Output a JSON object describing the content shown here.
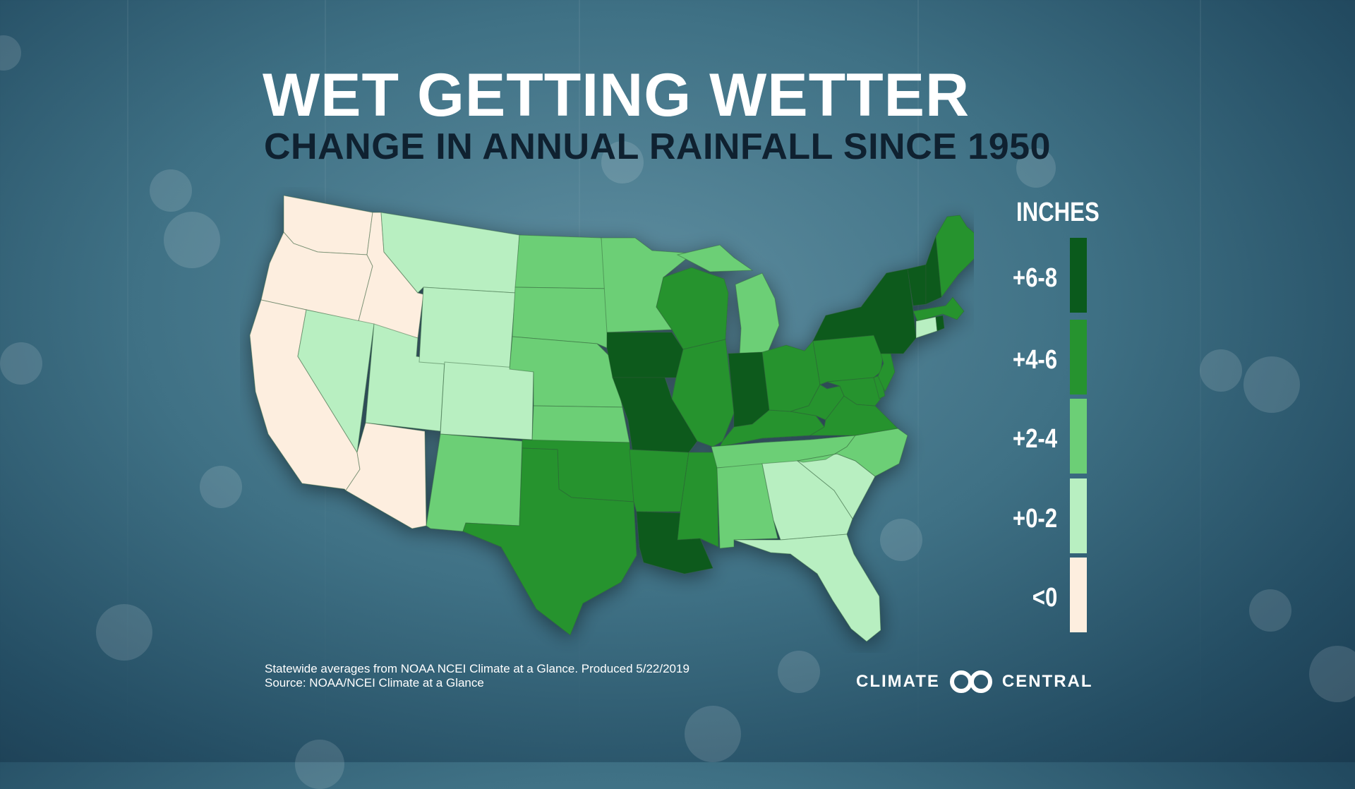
{
  "title": "WET GETTING WETTER",
  "subtitle": "CHANGE IN ANNUAL RAINFALL SINCE 1950",
  "legend": {
    "title": "INCHES",
    "items": [
      {
        "label": "+6-8",
        "color": "#0a5a1c"
      },
      {
        "label": "+4-6",
        "color": "#26932f"
      },
      {
        "label": "+2-4",
        "color": "#6ccf76"
      },
      {
        "label": "+0-2",
        "color": "#b8efc1"
      },
      {
        "label": "<0",
        "color": "#fdeedf"
      }
    ]
  },
  "map": {
    "type": "choropleth",
    "region": "Contiguous United States",
    "states": {
      "WA": "<0",
      "OR": "<0",
      "CA": "<0",
      "ID": "<0",
      "AZ": "<0",
      "NV": "+0-2",
      "UT": "+0-2",
      "MT": "+0-2",
      "WY": "+0-2",
      "CO": "+0-2",
      "GA": "+0-2",
      "SC": "+0-2",
      "FL": "+0-2",
      "CT": "+0-2",
      "NM": "+2-4",
      "ND": "+2-4",
      "SD": "+2-4",
      "NE": "+2-4",
      "KS": "+2-4",
      "MN": "+2-4",
      "MI": "+2-4",
      "AL": "+2-4",
      "TN": "+2-4",
      "NC": "+2-4",
      "TX": "+4-6",
      "OK": "+4-6",
      "AR": "+4-6",
      "MS": "+4-6",
      "WI": "+4-6",
      "IL": "+4-6",
      "KY": "+4-6",
      "OH": "+4-6",
      "WV": "+4-6",
      "VA": "+4-6",
      "PA": "+4-6",
      "NJ": "+4-6",
      "MD": "+4-6",
      "DE": "+4-6",
      "ME": "+4-6",
      "MA": "+4-6",
      "IA": "+6-8",
      "MO": "+6-8",
      "LA": "+6-8",
      "IN": "+6-8",
      "NY": "+6-8",
      "VT": "+6-8",
      "NH": "+6-8",
      "RI": "+6-8"
    }
  },
  "footnote": {
    "line1": "Statewide averages from NOAA NCEI Climate at a Glance. Produced 5/22/2019",
    "line2": "Source: NOAA/NCEI Climate at a Glance"
  },
  "logo": {
    "left": "CLIMATE",
    "right": "CENTRAL"
  }
}
